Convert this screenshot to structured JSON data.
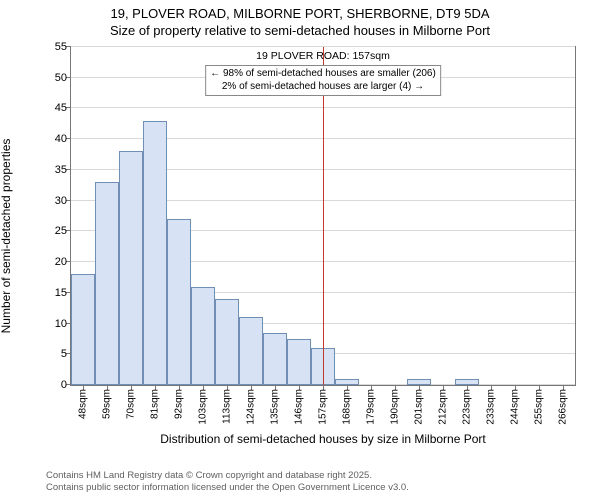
{
  "title_line1": "19, PLOVER ROAD, MILBORNE PORT, SHERBORNE, DT9 5DA",
  "title_line2": "Size of property relative to semi-detached houses in Milborne Port",
  "chart": {
    "type": "histogram",
    "ylabel": "Number of semi-detached properties",
    "xlabel": "Distribution of semi-detached houses by size in Milborne Port",
    "ylim": [
      0,
      55
    ],
    "ytick_step": 5,
    "y_ticks": [
      0,
      5,
      10,
      15,
      20,
      25,
      30,
      35,
      40,
      45,
      50,
      55
    ],
    "x_tick_labels": [
      "48sqm",
      "59sqm",
      "70sqm",
      "81sqm",
      "92sqm",
      "103sqm",
      "113sqm",
      "124sqm",
      "135sqm",
      "146sqm",
      "157sqm",
      "168sqm",
      "179sqm",
      "190sqm",
      "201sqm",
      "212sqm",
      "223sqm",
      "233sqm",
      "244sqm",
      "255sqm",
      "266sqm"
    ],
    "values": [
      18,
      33,
      38,
      43,
      27,
      16,
      14,
      11,
      8.5,
      7.5,
      6,
      1,
      0,
      0,
      1,
      0,
      1,
      0,
      0,
      0,
      0
    ],
    "bar_fill": "#d7e3f4",
    "bar_stroke": "#6f8fb5",
    "grid_color": "#d9d9d9",
    "axis_color": "#777777",
    "background_color": "#ffffff",
    "marker": {
      "bin_index": 10,
      "color": "#c0392b",
      "title": "19 PLOVER ROAD: 157sqm",
      "line1": "← 98% of semi-detached houses are smaller (206)",
      "line2": "2% of semi-detached houses are larger (4) →"
    }
  },
  "footer_line1": "Contains HM Land Registry data © Crown copyright and database right 2025.",
  "footer_line2": "Contains public sector information licensed under the Open Government Licence v3.0."
}
